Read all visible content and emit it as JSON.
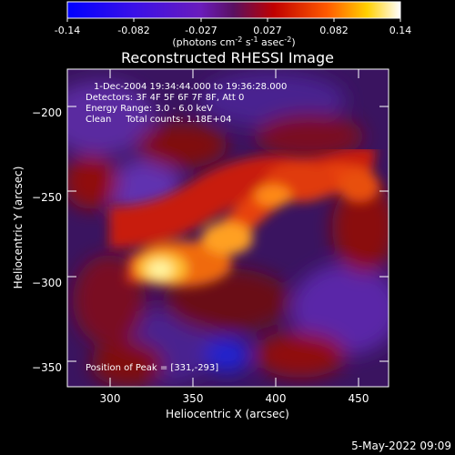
{
  "colorbar": {
    "ticks": [
      "-0.14",
      "-0.082",
      "-0.027",
      "0.027",
      "0.082",
      "0.14"
    ],
    "unit_prefix": "(photons cm",
    "unit_exp1": "-2",
    "unit_mid": " s",
    "unit_exp2": "-1",
    "unit_mid2": " asec",
    "unit_exp3": "-2",
    "unit_suffix": ")"
  },
  "chart_data": {
    "type": "heatmap",
    "title": "Reconstructed RHESSI Image",
    "xlabel": "Heliocentric X (arcsec)",
    "ylabel": "Heliocentric Y (arcsec)",
    "xlim": [
      274,
      468
    ],
    "ylim": [
      -365,
      -178
    ],
    "x_ticks": [
      300,
      350,
      400,
      450
    ],
    "y_ticks": [
      -200,
      -250,
      -300,
      -350
    ],
    "colorbar_range": [
      -0.14,
      0.14
    ],
    "peak": [
      331,
      -293
    ],
    "info": [
      "1-Dec-2004 19:34:44.000 to 19:36:28.000",
      "Detectors: 3F 4F 5F 6F 7F 8F, Att 0",
      "Energy Range: 3.0 - 6.0 keV",
      "Clean     Total counts: 1.18E+04"
    ],
    "peak_label": "Position of Peak = [331,-293]"
  },
  "footer": {
    "date": "5-May-2022 09:09"
  }
}
